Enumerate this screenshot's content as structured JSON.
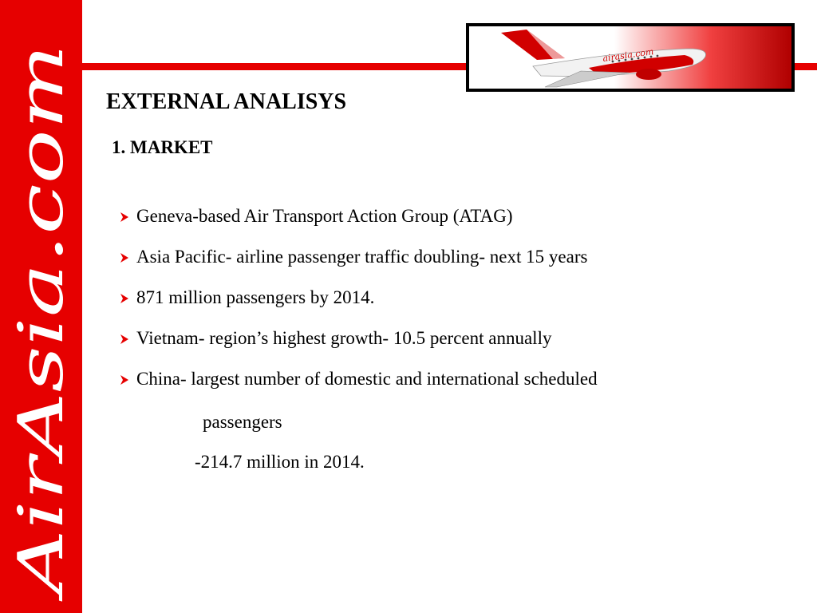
{
  "slide": {
    "title": "EXTERNAL ANALISYS",
    "subtitle": "1. MARKET",
    "bullets": [
      "Geneva-based Air Transport Action Group (ATAG)",
      "Asia Pacific- airline passenger traffic doubling- next 15 years",
      "871 million passengers by 2014.",
      "Vietnam- region’s highest growth- 10.5 percent annually",
      "China- largest number of domestic and international scheduled"
    ],
    "continuation": [
      "passengers",
      "-214.7 million in 2014."
    ]
  },
  "branding": {
    "sidebar_logo_text": "AirAsia.com",
    "plane_livery_text": "airasia.com",
    "brand_color": "#e60000"
  },
  "icons": {
    "bullet": "arrow-bullet-icon"
  }
}
